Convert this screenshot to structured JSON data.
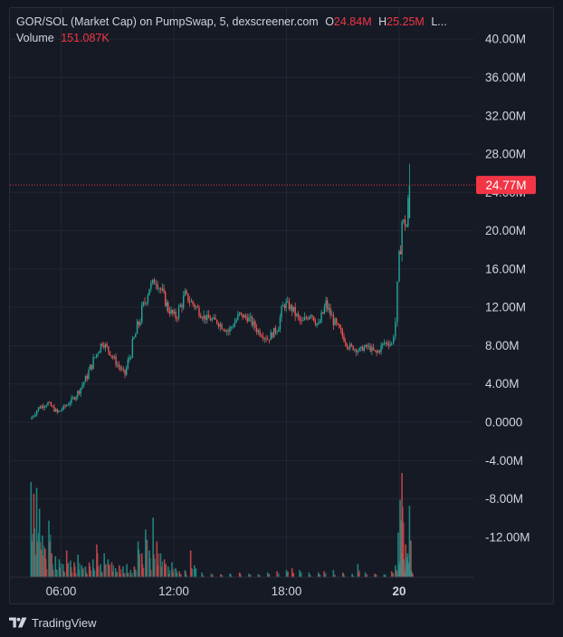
{
  "legend": {
    "title": "GOR/SOL (Market Cap) on PumpSwap, 5, dexscreener.com",
    "open_label": "O",
    "open_value": "24.84M",
    "high_label": "H",
    "high_value": "25.25M",
    "more": "L...",
    "volume_label": "Volume",
    "volume_value": "151.087K"
  },
  "footer": {
    "brand": "TradingView"
  },
  "colors": {
    "up": "#26a69a",
    "down": "#ef5350",
    "last_price": "#f23645",
    "grid": "#232632",
    "text": "#d1d4dc"
  },
  "chart_data": {
    "type": "candlestick",
    "title": "GOR/SOL (Market Cap) on PumpSwap, 5, dexscreener.com",
    "ylim": [
      -16000000,
      42000000
    ],
    "y_ticks": [
      {
        "value": 40000000,
        "label": "40.00M"
      },
      {
        "value": 36000000,
        "label": "36.00M"
      },
      {
        "value": 32000000,
        "label": "32.00M"
      },
      {
        "value": 28000000,
        "label": "28.00M"
      },
      {
        "value": 24000000,
        "label": "24.00M"
      },
      {
        "value": 20000000,
        "label": "20.00M"
      },
      {
        "value": 16000000,
        "label": "16.00M"
      },
      {
        "value": 12000000,
        "label": "12.00M"
      },
      {
        "value": 8000000,
        "label": "8.00M"
      },
      {
        "value": 4000000,
        "label": "4.00M"
      },
      {
        "value": 0,
        "label": "0.0000"
      },
      {
        "value": -4000000,
        "label": "-4.00M"
      },
      {
        "value": -8000000,
        "label": "-8.00M"
      },
      {
        "value": -12000000,
        "label": "-12.00M"
      }
    ],
    "x_ticks": [
      {
        "hour": 6,
        "label": "06:00",
        "bold": false
      },
      {
        "hour": 12,
        "label": "12:00",
        "bold": false
      },
      {
        "hour": 18,
        "label": "18:00",
        "bold": false
      },
      {
        "hour": 24,
        "label": "20",
        "bold": true
      }
    ],
    "xlim_hours": [
      3.4,
      28.8
    ],
    "last_price": {
      "value": 24770000,
      "label": "24.77M"
    },
    "grid": true,
    "price_anchors": [
      [
        4.35,
        0.3
      ],
      [
        4.8,
        1.5
      ],
      [
        5.3,
        2.0
      ],
      [
        5.8,
        1.0
      ],
      [
        6.3,
        1.8
      ],
      [
        6.8,
        2.8
      ],
      [
        7.3,
        4.5
      ],
      [
        7.8,
        6.8
      ],
      [
        8.2,
        8.4
      ],
      [
        8.6,
        7.3
      ],
      [
        9.0,
        6.0
      ],
      [
        9.4,
        5.0
      ],
      [
        9.8,
        8.0
      ],
      [
        10.3,
        11.5
      ],
      [
        10.7,
        14.2
      ],
      [
        11.05,
        14.8
      ],
      [
        11.4,
        13.5
      ],
      [
        11.7,
        11.8
      ],
      [
        12.1,
        11.0
      ],
      [
        12.6,
        13.2
      ],
      [
        13.1,
        12.2
      ],
      [
        13.6,
        11.0
      ],
      [
        14.3,
        10.5
      ],
      [
        14.9,
        9.5
      ],
      [
        15.5,
        11.2
      ],
      [
        16.0,
        10.8
      ],
      [
        16.5,
        9.5
      ],
      [
        17.0,
        8.7
      ],
      [
        17.5,
        9.8
      ],
      [
        17.9,
        12.5
      ],
      [
        18.3,
        11.8
      ],
      [
        18.8,
        10.3
      ],
      [
        19.3,
        11.5
      ],
      [
        19.7,
        10.0
      ],
      [
        20.1,
        12.3
      ],
      [
        20.5,
        10.6
      ],
      [
        20.9,
        9.3
      ],
      [
        21.3,
        8.0
      ],
      [
        21.8,
        7.5
      ],
      [
        22.3,
        7.9
      ],
      [
        22.8,
        7.2
      ],
      [
        23.2,
        8.3
      ],
      [
        23.6,
        8.2
      ],
      [
        23.8,
        10.5
      ],
      [
        24.0,
        16.5
      ],
      [
        24.15,
        21.0
      ],
      [
        24.4,
        20.5
      ],
      [
        24.55,
        24.8
      ]
    ],
    "volume_bars_k": [
      [
        4.4,
        160
      ],
      [
        4.55,
        140
      ],
      [
        4.7,
        150
      ],
      [
        4.85,
        115
      ],
      [
        5.0,
        70
      ],
      [
        5.15,
        48
      ],
      [
        5.35,
        95
      ],
      [
        5.5,
        40
      ],
      [
        5.7,
        35
      ],
      [
        5.9,
        30
      ],
      [
        6.1,
        22
      ],
      [
        6.3,
        45
      ],
      [
        6.5,
        28
      ],
      [
        6.7,
        25
      ],
      [
        6.9,
        38
      ],
      [
        7.1,
        20
      ],
      [
        7.3,
        18
      ],
      [
        7.5,
        25
      ],
      [
        7.7,
        30
      ],
      [
        7.9,
        55
      ],
      [
        8.1,
        22
      ],
      [
        8.3,
        40
      ],
      [
        8.5,
        30
      ],
      [
        8.7,
        25
      ],
      [
        8.9,
        15
      ],
      [
        9.1,
        20
      ],
      [
        9.3,
        18
      ],
      [
        9.5,
        22
      ],
      [
        9.7,
        12
      ],
      [
        9.9,
        18
      ],
      [
        10.1,
        60
      ],
      [
        10.3,
        40
      ],
      [
        10.5,
        80
      ],
      [
        10.7,
        45
      ],
      [
        10.9,
        100
      ],
      [
        11.1,
        60
      ],
      [
        11.3,
        40
      ],
      [
        11.5,
        30
      ],
      [
        11.7,
        18
      ],
      [
        11.9,
        25
      ],
      [
        12.1,
        15
      ],
      [
        12.3,
        10
      ],
      [
        12.6,
        12
      ],
      [
        12.9,
        45
      ],
      [
        13.1,
        20
      ],
      [
        13.5,
        8
      ],
      [
        14.0,
        6
      ],
      [
        14.5,
        5
      ],
      [
        15.0,
        6
      ],
      [
        15.5,
        8
      ],
      [
        16.0,
        6
      ],
      [
        16.5,
        5
      ],
      [
        17.0,
        8
      ],
      [
        17.5,
        10
      ],
      [
        18.0,
        12
      ],
      [
        18.3,
        15
      ],
      [
        18.7,
        12
      ],
      [
        19.2,
        8
      ],
      [
        19.7,
        8
      ],
      [
        20.0,
        10
      ],
      [
        20.5,
        12
      ],
      [
        21.0,
        8
      ],
      [
        21.5,
        6
      ],
      [
        21.8,
        22
      ],
      [
        22.2,
        8
      ],
      [
        22.7,
        6
      ],
      [
        23.2,
        5
      ],
      [
        23.6,
        10
      ],
      [
        23.8,
        20
      ],
      [
        23.95,
        75
      ],
      [
        24.05,
        130
      ],
      [
        24.15,
        175
      ],
      [
        24.25,
        30
      ],
      [
        24.35,
        55
      ],
      [
        24.45,
        40
      ],
      [
        24.55,
        120
      ],
      [
        24.65,
        10
      ]
    ]
  }
}
